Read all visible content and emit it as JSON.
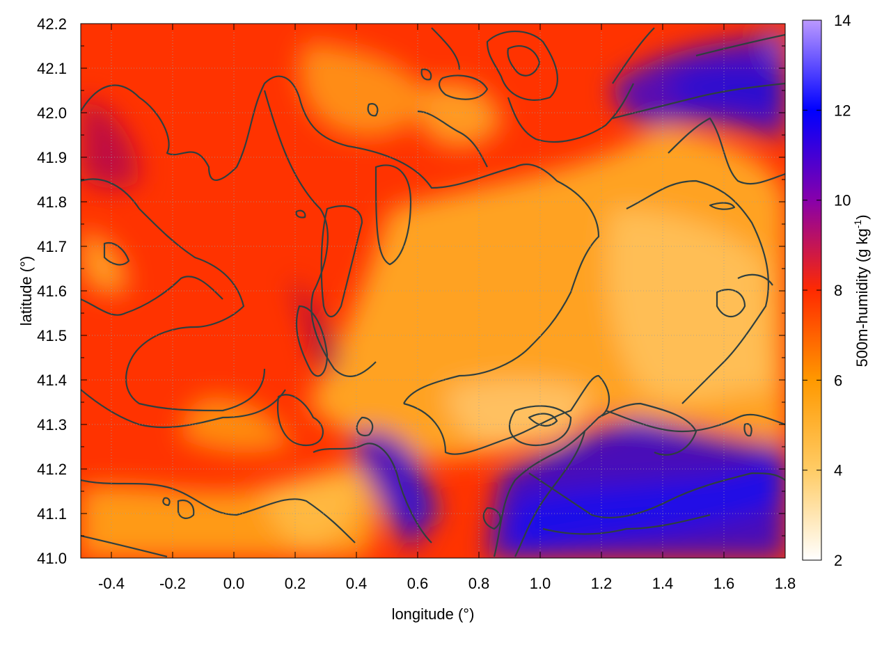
{
  "chart_data": {
    "type": "heatmap",
    "title": "",
    "xlabel": "longitude (°)",
    "ylabel": "latitude (°)",
    "xlim": [
      -0.5,
      1.8
    ],
    "ylim": [
      41.0,
      42.2
    ],
    "xticks": [
      "-0.4",
      "-0.2",
      "0.0",
      "0.2",
      "0.4",
      "0.6",
      "0.8",
      "1.0",
      "1.2",
      "1.4",
      "1.6",
      "1.8"
    ],
    "yticks": [
      "41.0",
      "41.1",
      "41.2",
      "41.3",
      "41.4",
      "41.5",
      "41.6",
      "41.7",
      "41.8",
      "41.9",
      "42.0",
      "42.1",
      "42.2"
    ],
    "grid": true,
    "colorbar": {
      "label_main": "500m-humidity (g kg",
      "label_sup": "-1",
      "label_end": ")",
      "range": [
        2,
        14
      ],
      "ticks": [
        "2",
        "4",
        "6",
        "8",
        "10",
        "12",
        "14"
      ],
      "colors": [
        "#ffffff",
        "#ffcc66",
        "#ff9900",
        "#ff2a00",
        "#8800aa",
        "#0000ff",
        "#bb99ff"
      ]
    },
    "contours": true,
    "value_field": "humidity at 500 m, approximately 3–6 g/kg over the central and south-east region, 7–9 g/kg over the west and north-west, and 10–12 g/kg along the north-east and south-east sea areas"
  }
}
